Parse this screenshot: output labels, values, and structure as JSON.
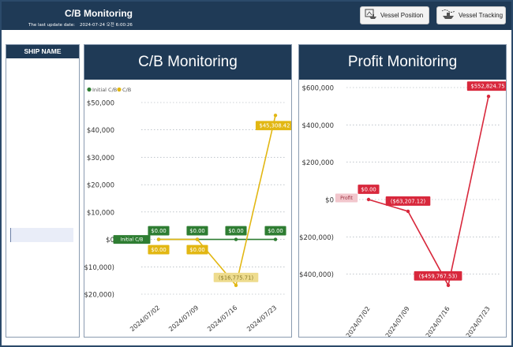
{
  "header": {
    "title": "C/B Monitoring",
    "update_label": "The last update date:",
    "update_value": "2024-07-24 오전 6:00:26"
  },
  "nav": {
    "vessel_position": {
      "label": "Vessel Position",
      "icon": "ship-map-icon"
    },
    "vessel_tracking": {
      "label": "Vessel Tracking",
      "icon": "ship-route-icon"
    }
  },
  "ship_list": {
    "header": "SHIP NAME"
  },
  "colors": {
    "navy": "#1f3a56",
    "initial_cb": "#2e7d32",
    "cb": "#e2b713",
    "profit": "#d8283c"
  },
  "chart_data": [
    {
      "type": "line",
      "title": "C/B Monitoring",
      "categories": [
        "2024/07/02",
        "2024/07/09",
        "2024/07/16",
        "2024/07/23"
      ],
      "y_ticks": [
        "$50,000",
        "$40,000",
        "$30,000",
        "$20,000",
        "$10,000",
        "$0",
        "($10,000)",
        "($20,000)"
      ],
      "ylim": [
        -20000,
        50000
      ],
      "legend_position": "top-left",
      "grid": true,
      "series": [
        {
          "name": "Initial C/B",
          "values": [
            0,
            0,
            0,
            0
          ],
          "labels": [
            "$0.00",
            "$0.00",
            "$0.00",
            "$0.00"
          ],
          "end_label": "Initial C/B"
        },
        {
          "name": "C/B",
          "values": [
            0,
            0,
            -16775.71,
            45308.42
          ],
          "labels": [
            "$0.00",
            "$0.00",
            "($16,775.71)",
            "$45,308.42"
          ]
        }
      ]
    },
    {
      "type": "line",
      "title": "Profit Monitoring",
      "categories": [
        "2024/07/02",
        "2024/07/09",
        "2024/07/16",
        "2024/07/23"
      ],
      "y_ticks": [
        "$600,000",
        "$400,000",
        "$200,000",
        "$0",
        "($200,000)",
        "($400,000)"
      ],
      "ylim": [
        -470000,
        620000
      ],
      "grid": true,
      "series": [
        {
          "name": "Profit",
          "values": [
            0,
            -63207.12,
            -459767.53,
            552824.75
          ],
          "labels": [
            "$0.00",
            "($63,207.12)",
            "($459,767.53)",
            "$552,824.75"
          ],
          "end_label": "Profit"
        }
      ]
    }
  ]
}
